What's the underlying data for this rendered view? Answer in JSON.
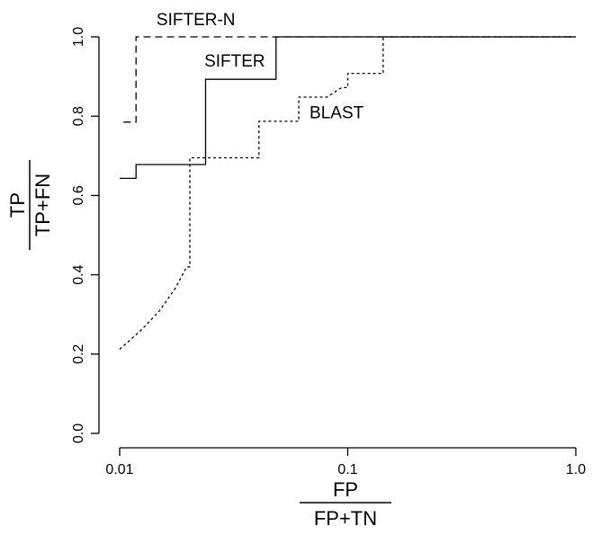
{
  "chart_data": {
    "type": "line",
    "xlabel": {
      "numerator": "FP",
      "denominator": "FP+TN"
    },
    "ylabel": {
      "numerator": "TP",
      "denominator": "TP+FN"
    },
    "x_scale": "log",
    "xlim": [
      0.01,
      1.0
    ],
    "ylim": [
      0.0,
      1.0
    ],
    "x_ticks": [
      {
        "value": 0.01,
        "label": "0.01"
      },
      {
        "value": 0.1,
        "label": "0.1"
      },
      {
        "value": 1.0,
        "label": "1.0"
      }
    ],
    "y_ticks": [
      {
        "value": 0.0,
        "label": "0.0"
      },
      {
        "value": 0.2,
        "label": "0.2"
      },
      {
        "value": 0.4,
        "label": "0.4"
      },
      {
        "value": 0.6,
        "label": "0.6"
      },
      {
        "value": 0.8,
        "label": "0.8"
      },
      {
        "value": 1.0,
        "label": "1.0"
      }
    ],
    "grid": false,
    "series": [
      {
        "name": "SIFTER-N",
        "style": "dashed",
        "label_at": {
          "x": 0.0145,
          "y": 1.03
        },
        "points": [
          [
            0.0104,
            0.785
          ],
          [
            0.0118,
            0.785
          ],
          [
            0.0118,
            1.0
          ],
          [
            0.05,
            1.0
          ],
          [
            1.0,
            1.0
          ]
        ]
      },
      {
        "name": "SIFTER",
        "style": "solid",
        "label_at": {
          "x": 0.0235,
          "y": 0.925
        },
        "points": [
          [
            0.01,
            0.643
          ],
          [
            0.0118,
            0.643
          ],
          [
            0.0118,
            0.678
          ],
          [
            0.0238,
            0.678
          ],
          [
            0.0238,
            0.893
          ],
          [
            0.0485,
            0.893
          ],
          [
            0.0485,
            1.0
          ],
          [
            1.0,
            1.0
          ]
        ]
      },
      {
        "name": "BLAST",
        "style": "dotted",
        "label_at": {
          "x": 0.068,
          "y": 0.795
        },
        "points": [
          [
            0.01,
            0.212
          ],
          [
            0.0125,
            0.262
          ],
          [
            0.015,
            0.31
          ],
          [
            0.0175,
            0.365
          ],
          [
            0.0197,
            0.42
          ],
          [
            0.0203,
            0.42
          ],
          [
            0.0203,
            0.695
          ],
          [
            0.0408,
            0.695
          ],
          [
            0.0408,
            0.787
          ],
          [
            0.061,
            0.787
          ],
          [
            0.061,
            0.848
          ],
          [
            0.081,
            0.848
          ],
          [
            0.094,
            0.872
          ],
          [
            0.1,
            0.872
          ],
          [
            0.1,
            0.908
          ],
          [
            0.143,
            0.908
          ],
          [
            0.143,
            1.0
          ],
          [
            1.0,
            1.0
          ]
        ]
      }
    ]
  }
}
